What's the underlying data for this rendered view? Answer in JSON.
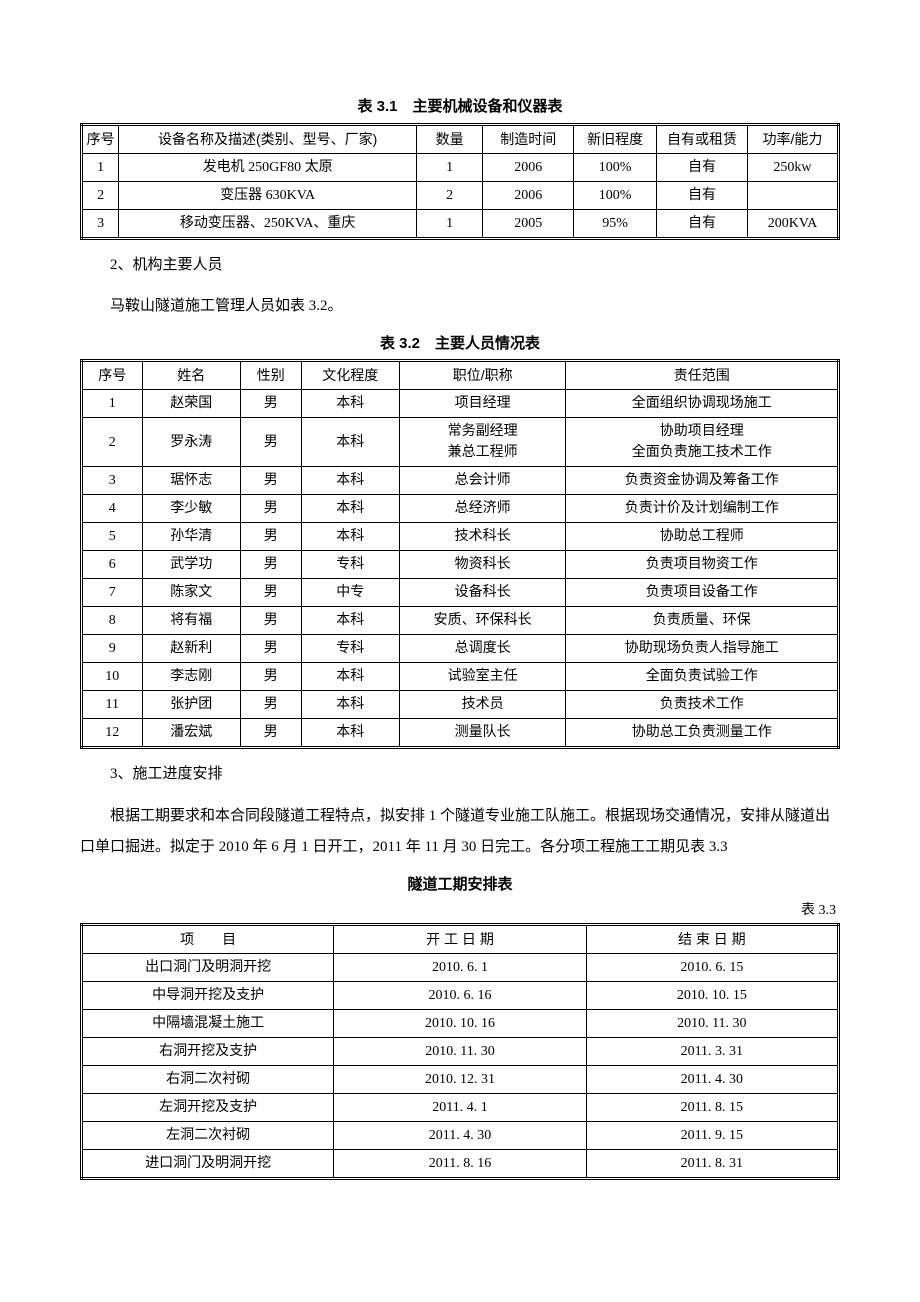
{
  "table1": {
    "title": "表 3.1　主要机械设备和仪器表",
    "columns": [
      "序号",
      "设备名称及描述(类别、型号、厂家)",
      "数量",
      "制造时间",
      "新旧程度",
      "自有或租赁",
      "功率/能力"
    ],
    "widths_pct": [
      4.5,
      36,
      8,
      11,
      10,
      11,
      11
    ],
    "rows": [
      [
        "1",
        "发电机 250GF80 太原",
        "1",
        "2006",
        "100%",
        "自有",
        "250kw"
      ],
      [
        "2",
        "变压器 630KVA",
        "2",
        "2006",
        "100%",
        "自有",
        ""
      ],
      [
        "3",
        "移动变压器、250KVA、重庆",
        "1",
        "2005",
        "95%",
        "自有",
        "200KVA"
      ]
    ]
  },
  "para1": "2、机构主要人员",
  "para2": "马鞍山隧道施工管理人员如表 3.2。",
  "table2": {
    "title": "表 3.2　主要人员情况表",
    "columns": [
      "序号",
      "姓名",
      "性别",
      "文化程度",
      "职位/职称",
      "责任范围"
    ],
    "widths_pct": [
      8,
      13,
      8,
      13,
      22,
      36
    ],
    "rows": [
      [
        "1",
        "赵荣国",
        "男",
        "本科",
        "项目经理",
        "全面组织协调现场施工"
      ],
      [
        "2",
        "罗永涛",
        "男",
        "本科",
        "常务副经理\n兼总工程师",
        "协助项目经理\n全面负责施工技术工作"
      ],
      [
        "3",
        "琚怀志",
        "男",
        "本科",
        "总会计师",
        "负责资金协调及筹备工作"
      ],
      [
        "4",
        "李少敏",
        "男",
        "本科",
        "总经济师",
        "负责计价及计划编制工作"
      ],
      [
        "5",
        "孙华清",
        "男",
        "本科",
        "技术科长",
        "协助总工程师"
      ],
      [
        "6",
        "武学功",
        "男",
        "专科",
        "物资科长",
        "负责项目物资工作"
      ],
      [
        "7",
        "陈家文",
        "男",
        "中专",
        "设备科长",
        "负责项目设备工作"
      ],
      [
        "8",
        "将有福",
        "男",
        "本科",
        "安质、环保科长",
        "负责质量、环保"
      ],
      [
        "9",
        "赵新利",
        "男",
        "专科",
        "总调度长",
        "协助现场负责人指导施工"
      ],
      [
        "10",
        "李志刚",
        "男",
        "本科",
        "试验室主任",
        "全面负责试验工作"
      ],
      [
        "11",
        "张护团",
        "男",
        "本科",
        "技术员",
        "负责技术工作"
      ],
      [
        "12",
        "潘宏斌",
        "男",
        "本科",
        "测量队长",
        "协助总工负责测量工作"
      ]
    ]
  },
  "para3": "3、施工进度安排",
  "para4": "根据工期要求和本合同段隧道工程特点，拟安排 1 个隧道专业施工队施工。根据现场交通情况，安排从隧道出口单口掘进。拟定于 2010 年 6 月 1 日开工，2011 年 11 月 30 日完工。各分项工程施工工期见表 3.3",
  "table3": {
    "title": "隧道工期安排表",
    "right_label": "表 3.3",
    "columns_display": [
      "项　　目",
      "开 工 日 期",
      "结 束 日 期"
    ],
    "columns": [
      "项目",
      "开工日期",
      "结束日期"
    ],
    "rows": [
      [
        "出口洞门及明洞开挖",
        "2010. 6. 1",
        "2010. 6. 15"
      ],
      [
        "中导洞开挖及支护",
        "2010. 6. 16",
        "2010. 10. 15"
      ],
      [
        "中隔墙混凝土施工",
        "2010. 10. 16",
        "2010. 11. 30"
      ],
      [
        "右洞开挖及支护",
        "2010. 11. 30",
        "2011. 3. 31"
      ],
      [
        "右洞二次衬砌",
        "2010. 12. 31",
        "2011. 4. 30"
      ],
      [
        "左洞开挖及支护",
        "2011. 4. 1",
        "2011. 8. 15"
      ],
      [
        "左洞二次衬砌",
        "2011. 4. 30",
        "2011. 9. 15"
      ],
      [
        "进口洞门及明洞开挖",
        "2011. 8. 16",
        "2011. 8. 31"
      ]
    ]
  },
  "background_color": "#ffffff",
  "text_color": "#000000",
  "border_color": "#000000",
  "body_font": "SimSun",
  "heading_font": "SimHei",
  "base_font_size_pt": 11
}
